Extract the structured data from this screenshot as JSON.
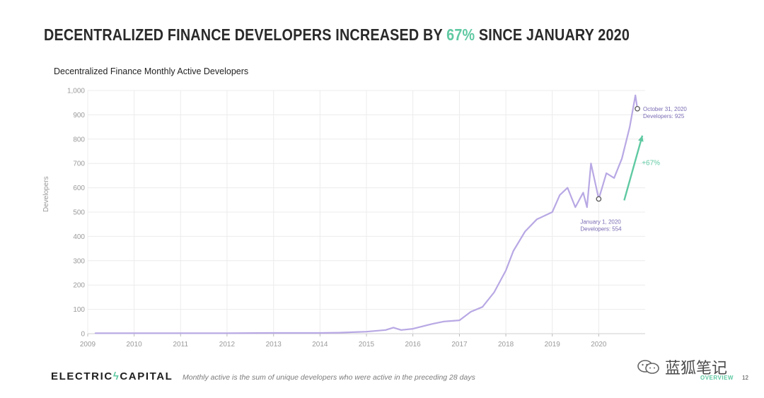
{
  "headline": {
    "before": "DECENTRALIZED FINANCE DEVELOPERS INCREASED BY ",
    "accent": "67%",
    "after": " SINCE JANUARY 2020"
  },
  "colors": {
    "accent": "#5fc9a2",
    "series": "#b8a8e4",
    "annotation": "#7a6bb3",
    "grid": "#ececec"
  },
  "chart_data": {
    "type": "line",
    "title": "Decentralized Finance Monthly Active Developers",
    "xlabel": "",
    "ylabel": "Developers",
    "xlim": [
      "2009-01-01",
      "2020-12-31"
    ],
    "ylim": [
      0,
      1000
    ],
    "yticks": [
      "0",
      "100",
      "200",
      "300",
      "400",
      "500",
      "600",
      "700",
      "800",
      "900",
      "1,000"
    ],
    "xticks": [
      "2009",
      "2010",
      "2011",
      "2012",
      "2013",
      "2014",
      "2015",
      "2016",
      "2017",
      "2018",
      "2019",
      "2020"
    ],
    "grid": true,
    "series": [
      {
        "values": [
          [
            "2009-03-01",
            2
          ],
          [
            "2010-01-01",
            2
          ],
          [
            "2011-01-01",
            2
          ],
          [
            "2012-01-01",
            2
          ],
          [
            "2013-01-01",
            3
          ],
          [
            "2014-01-01",
            3
          ],
          [
            "2014-06-01",
            4
          ],
          [
            "2015-01-01",
            8
          ],
          [
            "2015-06-01",
            15
          ],
          [
            "2015-08-01",
            25
          ],
          [
            "2015-10-01",
            15
          ],
          [
            "2016-01-01",
            20
          ],
          [
            "2016-06-01",
            40
          ],
          [
            "2016-09-01",
            50
          ],
          [
            "2017-01-01",
            55
          ],
          [
            "2017-04-01",
            90
          ],
          [
            "2017-07-01",
            110
          ],
          [
            "2017-10-01",
            170
          ],
          [
            "2018-01-01",
            260
          ],
          [
            "2018-03-01",
            340
          ],
          [
            "2018-06-01",
            420
          ],
          [
            "2018-09-01",
            470
          ],
          [
            "2019-01-01",
            500
          ],
          [
            "2019-03-01",
            570
          ],
          [
            "2019-05-01",
            600
          ],
          [
            "2019-07-01",
            520
          ],
          [
            "2019-09-01",
            580
          ],
          [
            "2019-10-01",
            520
          ],
          [
            "2019-11-01",
            700
          ],
          [
            "2020-01-01",
            554
          ],
          [
            "2020-03-01",
            660
          ],
          [
            "2020-05-01",
            640
          ],
          [
            "2020-07-01",
            720
          ],
          [
            "2020-09-01",
            850
          ],
          [
            "2020-10-15",
            980
          ],
          [
            "2020-10-31",
            925
          ]
        ]
      }
    ],
    "annotations": [
      {
        "date": "2020-01-01",
        "value": 554,
        "label_date": "January 1, 2020",
        "label_value": "Developers: 554"
      },
      {
        "date": "2020-10-31",
        "value": 925,
        "label_date": "October 31, 2020",
        "label_value": "Developers: 925"
      }
    ],
    "change_label": "+67%"
  },
  "footer": {
    "logo_left": "ELECTRIC",
    "logo_right": "CAPITAL",
    "note": "Monthly active is the sum of unique developers who were active in the preceding 28 days",
    "section": "OVERVIEW",
    "page": "12"
  },
  "watermark": {
    "text": "蓝狐笔记",
    "icon": "wechat-icon"
  }
}
